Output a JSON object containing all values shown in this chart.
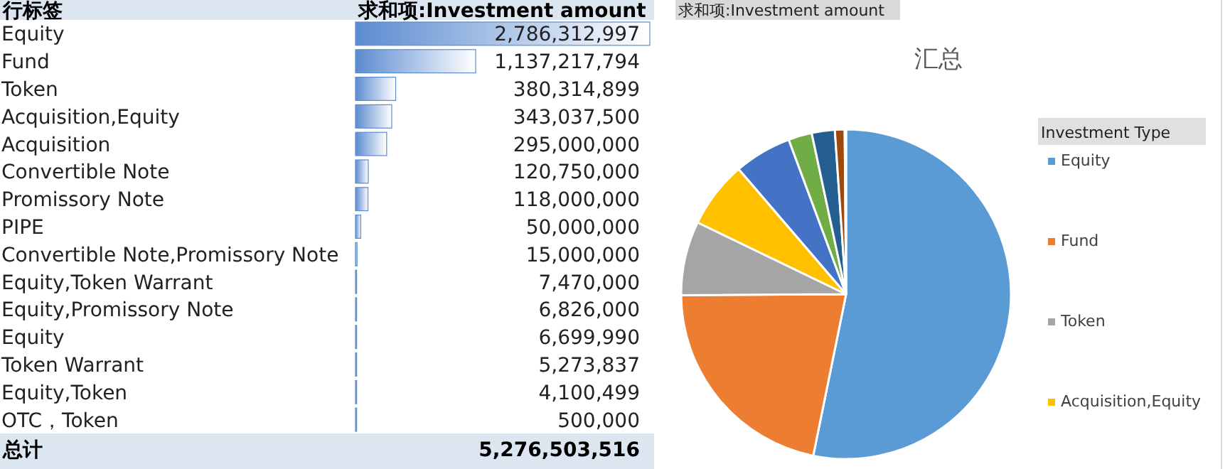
{
  "chart_data": [
    {
      "type": "bar",
      "orientation": "horizontal",
      "ylabel": "行标签",
      "xlabel": "求和项:Investment amount",
      "categories": [
        "Equity",
        "Fund",
        "Token",
        "Acquisition,Equity",
        "Acquisition",
        "Convertible Note",
        "Promissory Note",
        "PIPE",
        "Convertible Note,Promissory Note",
        "Equity,Token Warrant",
        "Equity,Promissory Note",
        "Equity",
        "Token Warrant",
        "Equity,Token",
        "OTC，Token"
      ],
      "values": [
        2786312997,
        1137217794,
        380314899,
        343037500,
        295000000,
        120750000,
        118000000,
        50000000,
        15000000,
        7470000,
        6826000,
        6699990,
        5273837,
        4100499,
        500000
      ],
      "value_labels": [
        "2,786,312,997",
        "1,137,217,794",
        "380,314,899",
        "343,037,500",
        "295,000,000",
        "120,750,000",
        "118,000,000",
        "50,000,000",
        "15,000,000",
        "7,470,000",
        "6,826,000",
        "6,699,990",
        "5,273,837",
        "4,100,499",
        "500,000"
      ],
      "color": "#5b8bd0",
      "annotations": [
        "总计",
        "5,276,503,516"
      ]
    },
    {
      "type": "pie",
      "title": "汇总",
      "legend_title": "Investment Type",
      "legend": "right",
      "categories": [
        "Equity",
        "Fund",
        "Token",
        "Acquisition,Equity",
        null,
        null,
        null,
        null,
        null,
        null,
        null
      ],
      "values": [
        52.8,
        21.55,
        7.21,
        6.5,
        5.59,
        2.29,
        2.24,
        0.95,
        null,
        null,
        0.13
      ],
      "colors": [
        "#5b9bd5",
        "#ed7d31",
        "#a5a5a5",
        "#ffc000",
        "#4472c4",
        "#70ad47",
        "#255e91",
        "#9e480e",
        null,
        null,
        "#264478"
      ],
      "annotations": [
        "求和项:Investment amount"
      ]
    }
  ]
}
